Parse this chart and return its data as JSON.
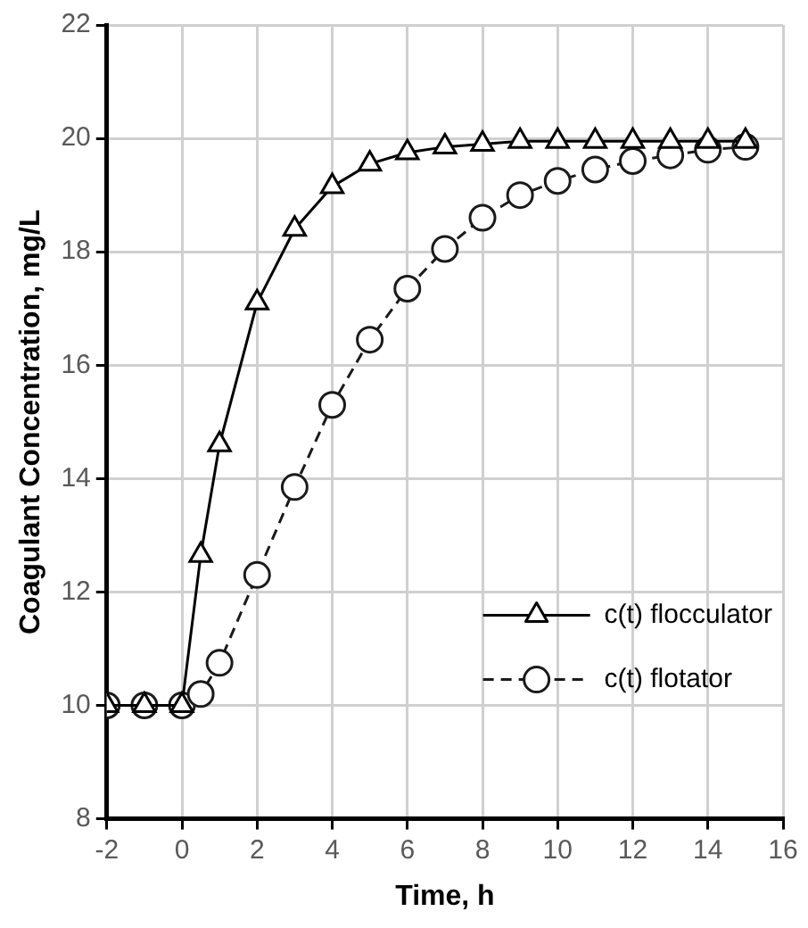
{
  "chart_data": {
    "type": "line",
    "xlabel": "Time, h",
    "ylabel": "Coagulant Concentration, mg/L",
    "xlim": [
      -2,
      16
    ],
    "xticks": [
      -2,
      0,
      2,
      4,
      6,
      8,
      10,
      12,
      14,
      16
    ],
    "ylim": [
      8,
      22
    ],
    "yticks": [
      8,
      10,
      12,
      14,
      16,
      18,
      20,
      22
    ],
    "grid": true,
    "legend": "bottom right",
    "series": [
      {
        "name": "c(t) flocculator",
        "color": "#000000",
        "marker": "triangle",
        "line_style": "solid",
        "x": [
          -2,
          -1,
          0,
          0.5,
          1,
          2,
          3,
          4,
          5,
          6,
          7,
          8,
          9,
          10,
          11,
          12,
          13,
          14,
          15
        ],
        "values": [
          10,
          10,
          10,
          12.65,
          14.6,
          17.1,
          18.4,
          19.15,
          19.55,
          19.75,
          19.85,
          19.9,
          19.95,
          19.95,
          19.95,
          19.95,
          19.95,
          19.95,
          19.95
        ]
      },
      {
        "name": "c(t) flotator",
        "color": "#1a1a1a",
        "marker": "circle",
        "line_style": "dashed",
        "x": [
          -2,
          -1,
          0,
          0.5,
          1,
          2,
          3,
          4,
          5,
          6,
          7,
          8,
          9,
          10,
          11,
          12,
          13,
          14,
          15
        ],
        "values": [
          10,
          10,
          10,
          10.2,
          10.75,
          12.3,
          13.85,
          15.3,
          16.45,
          17.35,
          18.05,
          18.6,
          19.0,
          19.25,
          19.45,
          19.6,
          19.7,
          19.8,
          19.85
        ]
      }
    ]
  }
}
